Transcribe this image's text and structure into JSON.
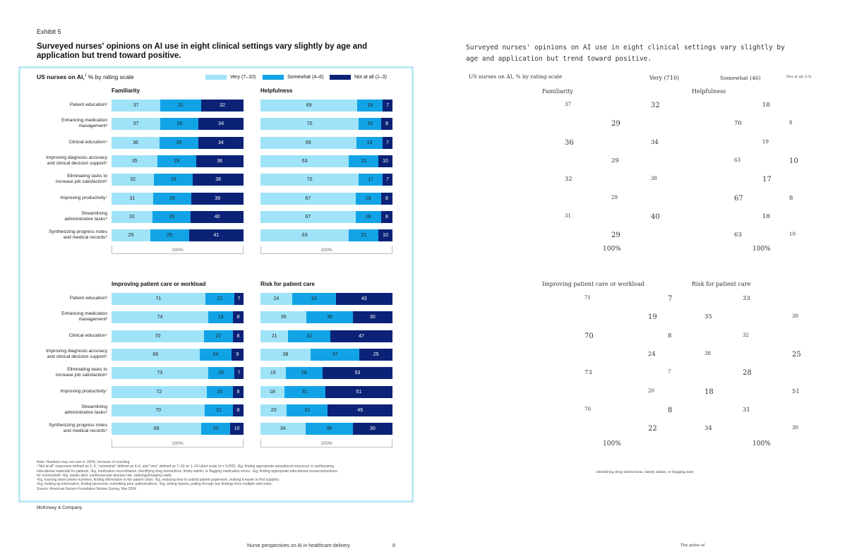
{
  "exhibit": "Exhibit 5",
  "title": "Surveyed nurses' opinions on AI use in eight clinical settings vary slightly by age and application but trend toward positive.",
  "subtitle_bold": "US nurses on AI,",
  "subtitle_sup": "1",
  "subtitle_rest": " % by rating scale",
  "legend": [
    {
      "label": "Very (7–10)",
      "color": "#9fe3f8"
    },
    {
      "label": "Somewhat (4–6)",
      "color": "#12a3e6"
    },
    {
      "label": "Not at all (1–3)",
      "color": "#0b2277"
    }
  ],
  "categories": [
    {
      "lines": [
        "Patient education²"
      ]
    },
    {
      "lines": [
        "Enhancing medication",
        "management³"
      ]
    },
    {
      "lines": [
        "Clinical education⁴"
      ]
    },
    {
      "lines": [
        "Improving diagnosis accuracy",
        "and clinical decision support⁵"
      ]
    },
    {
      "lines": [
        "Eliminating tasks to",
        "increase job satisfaction⁶"
      ]
    },
    {
      "lines": [
        "Improving productivity⁷"
      ]
    },
    {
      "lines": [
        "Streamlining",
        "administrative tasks⁸"
      ]
    },
    {
      "lines": [
        "Synthesizing progress notes",
        "and medical records⁹"
      ]
    }
  ],
  "scale_label": "100%",
  "chart_data": [
    {
      "type": "bar",
      "stacked": true,
      "title": "Familiarity",
      "categories": [
        "Patient education",
        "Enhancing medication management",
        "Clinical education",
        "Improving diagnosis accuracy and clinical decision support",
        "Eliminating tasks to increase job satisfaction",
        "Improving productivity",
        "Streamlining administrative tasks",
        "Synthesizing progress notes and medical records"
      ],
      "series": [
        {
          "name": "Very (7–10)",
          "values": [
            37,
            37,
            36,
            35,
            32,
            31,
            31,
            29
          ]
        },
        {
          "name": "Somewhat (4–6)",
          "values": [
            31,
            29,
            29,
            29,
            29,
            29,
            29,
            29
          ]
        },
        {
          "name": "Not at all (1–3)",
          "values": [
            32,
            34,
            34,
            36,
            38,
            39,
            40,
            41
          ]
        }
      ],
      "xlim": [
        0,
        100
      ]
    },
    {
      "type": "bar",
      "stacked": true,
      "title": "Helpfulness",
      "categories": [
        "Patient education",
        "Enhancing medication management",
        "Clinical education",
        "Improving diagnosis accuracy and clinical decision support",
        "Eliminating tasks to increase job satisfaction",
        "Improving productivity",
        "Streamlining administrative tasks",
        "Synthesizing progress notes and medical records"
      ],
      "series": [
        {
          "name": "Very (7–10)",
          "values": [
            69,
            70,
            69,
            63,
            70,
            67,
            67,
            63
          ]
        },
        {
          "name": "Somewhat (4–6)",
          "values": [
            18,
            16,
            19,
            21,
            17,
            18,
            18,
            21
          ]
        },
        {
          "name": "Not at all (1–3)",
          "values": [
            7,
            8,
            7,
            10,
            7,
            8,
            8,
            10
          ]
        }
      ],
      "xlim": [
        0,
        100
      ]
    },
    {
      "type": "bar",
      "stacked": true,
      "title": "Improving patient care or workload",
      "categories": [
        "Patient education",
        "Enhancing medication management",
        "Clinical education",
        "Improving diagnosis accuracy and clinical decision support",
        "Eliminating tasks to increase job satisfaction",
        "Improving productivity",
        "Streamlining administrative tasks",
        "Synthesizing progress notes and medical records"
      ],
      "series": [
        {
          "name": "Very (7–10)",
          "values": [
            71,
            74,
            70,
            66,
            73,
            72,
            70,
            68
          ]
        },
        {
          "name": "Somewhat (4–6)",
          "values": [
            22,
            19,
            22,
            24,
            20,
            20,
            21,
            22
          ]
        },
        {
          "name": "Not at all (1–3)",
          "values": [
            7,
            8,
            8,
            9,
            7,
            8,
            8,
            10
          ]
        }
      ],
      "xlim": [
        0,
        100
      ]
    },
    {
      "type": "bar",
      "stacked": true,
      "title": "Risk for patient care",
      "categories": [
        "Patient education",
        "Enhancing medication management",
        "Clinical education",
        "Improving diagnosis accuracy and clinical decision support",
        "Eliminating tasks to increase job satisfaction",
        "Improving productivity",
        "Streamlining administrative tasks",
        "Synthesizing progress notes and medical records"
      ],
      "series": [
        {
          "name": "Very (7–10)",
          "values": [
            24,
            35,
            21,
            38,
            19,
            18,
            20,
            34
          ]
        },
        {
          "name": "Somewhat (4–6)",
          "values": [
            33,
            35,
            32,
            37,
            28,
            31,
            31,
            36
          ]
        },
        {
          "name": "Not at all (1–3)",
          "values": [
            43,
            30,
            47,
            25,
            53,
            51,
            49,
            30
          ]
        }
      ],
      "xlim": [
        0,
        100
      ]
    }
  ],
  "notes": [
    "Note: Numbers may not sum to 100%, because of rounding.",
    "¹\"Not at all\" responses defined as 1–3, \"somewhat\" defined as 4–6, and \"very\" defined as 7–10 on 1–10 Likert scale (n = 5,093). ²Eg, finding appropriate educational resources or synthesizing",
    "educational materials for patients. ³Eg, medication reconciliation, identifying drug interactions, timely admin, or flagging medication errors. ⁴Eg, finding appropriate educational resources/policies",
    "for nurses/staff. ⁵Eg, sepsis alert, cardiovascular disease risk, radiology/imaging reads.",
    "⁶Eg, tracking down phone numbers, finding information in the patient chart. ⁷Eg, reducing time to submit patient paperwork, making it easier to find supplies.",
    "⁸Eg, looking up information, finding personnel, submitting prior authorizations. ⁹Eg, writing reports, pulling through key findings from multiple visit notes.",
    "Source: American Nurses Foundation Nurses Survey, Mar 2024"
  ],
  "brand": "McKinsey & Company",
  "footer": "Nurse perspectives on AI in healthcare delivery",
  "page_number": "8",
  "right_panel": {
    "title": "Surveyed nurses' opinions on AI use in eight clinical settings vary slightly by age and application but trend toward positive.",
    "subtitle": "US nurses on AI, % by rating scale",
    "legend": [
      "Very (710)",
      "Somewhat (46)",
      "Not at all (13)"
    ],
    "panel_titles": [
      "Familiarity",
      "Helpfulness",
      "Improving patient care or workload",
      "Risk for patient care"
    ],
    "scale": "100%",
    "fragment": "identifying drug interactions, timely admin, or flagging med",
    "footer": "The pulse of"
  }
}
